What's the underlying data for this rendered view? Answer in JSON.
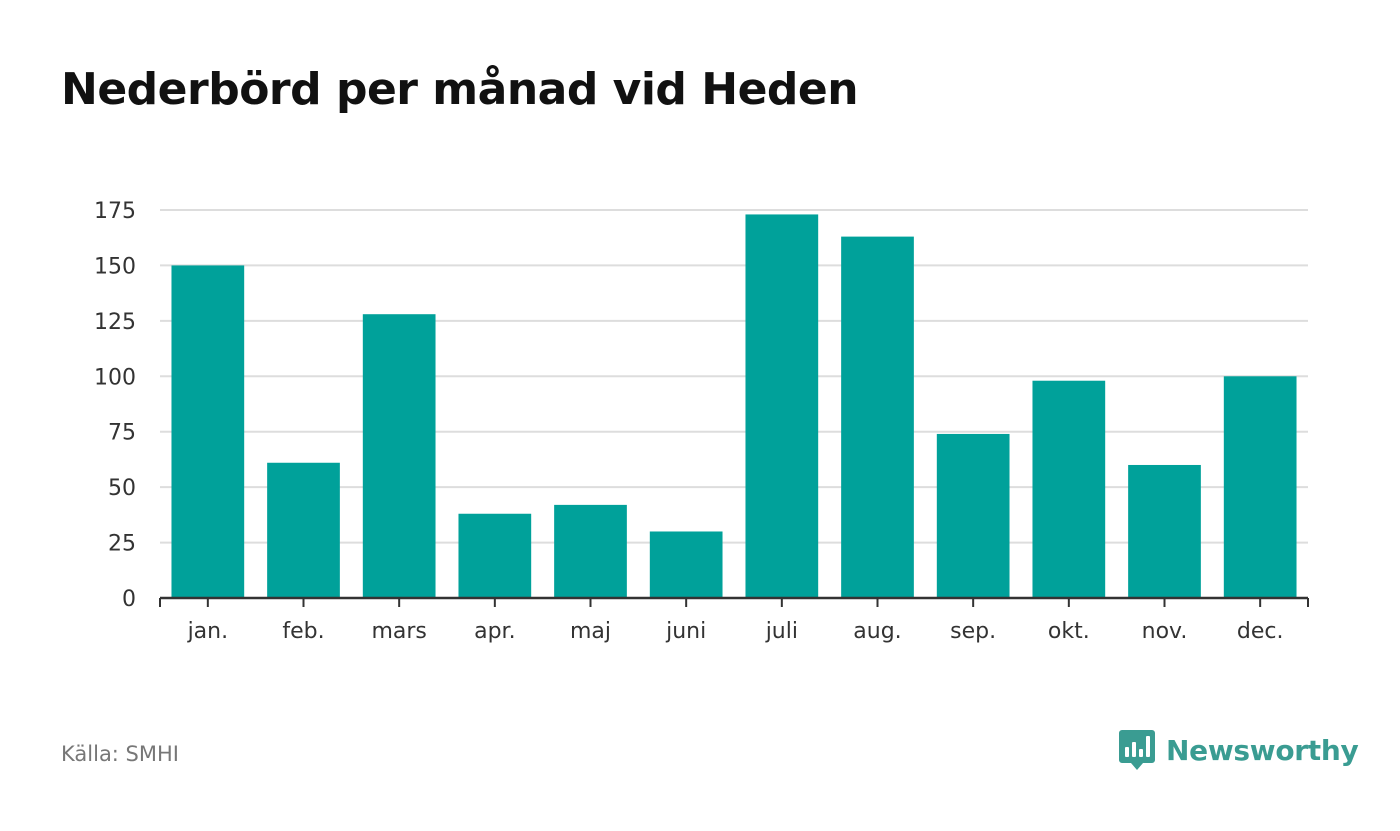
{
  "colors": {
    "bar": "#00a19a",
    "grid": "#dddddd",
    "axis": "#333333",
    "text": "#333333",
    "brand": "#3a9c92"
  },
  "footer": {
    "source": "Källa: SMHI",
    "brand": "Newsworthy",
    "brand_icon": "bar-chart-speech-bubble-icon"
  },
  "chart_data": {
    "type": "bar",
    "title": "Nederbörd per månad vid Heden",
    "xlabel": "",
    "ylabel": "",
    "categories": [
      "jan.",
      "feb.",
      "mars",
      "apr.",
      "maj",
      "juni",
      "juli",
      "aug.",
      "sep.",
      "okt.",
      "nov.",
      "dec."
    ],
    "values": [
      150,
      61,
      128,
      38,
      42,
      30,
      173,
      163,
      74,
      98,
      60,
      100
    ],
    "ylim": [
      0,
      175
    ],
    "yticks": [
      0,
      25,
      50,
      75,
      100,
      125,
      150,
      175
    ],
    "grid": true,
    "legend": "none"
  }
}
